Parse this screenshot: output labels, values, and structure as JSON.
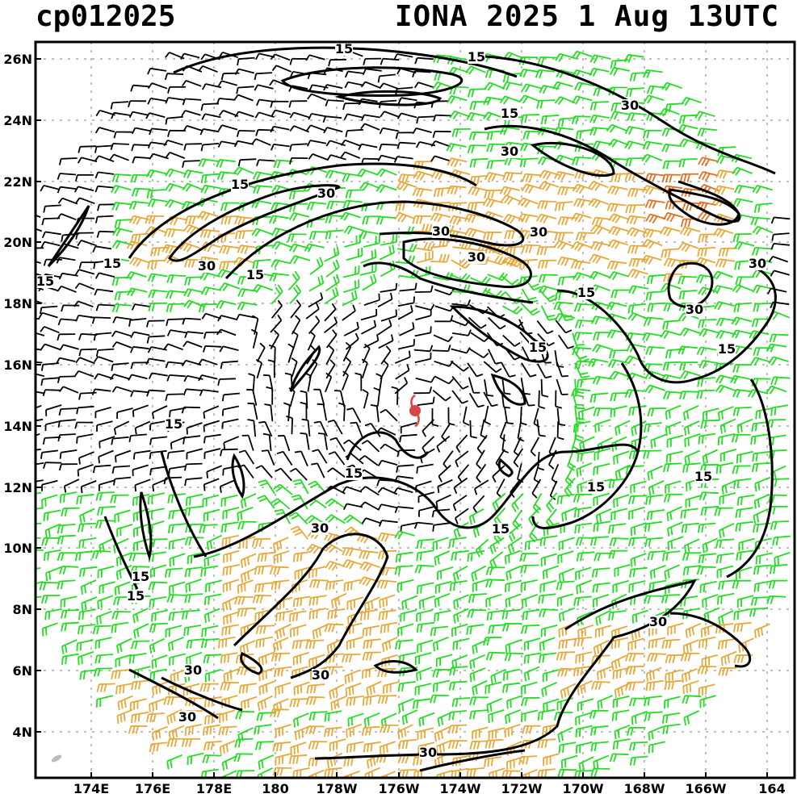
{
  "header": {
    "storm_id": "cp012025",
    "storm_title": "IONA 2025   1 Aug 13UTC"
  },
  "axes": {
    "lat_labels": [
      "26N",
      "24N",
      "22N",
      "20N",
      "18N",
      "16N",
      "14N",
      "12N",
      "10N",
      "8N",
      "6N",
      "4N"
    ],
    "lon_labels": [
      "174E",
      "176E",
      "178E",
      "180",
      "178W",
      "176W",
      "174W",
      "172W",
      "170W",
      "168W",
      "166W",
      "164"
    ]
  },
  "contour_levels": [
    "15",
    "30"
  ],
  "contour_labels": [
    "15",
    "15",
    "15",
    "15",
    "15",
    "15",
    "15",
    "15",
    "15",
    "15",
    "15",
    "15",
    "15",
    "15",
    "15",
    "15",
    "15",
    "30",
    "30",
    "30",
    "30",
    "30",
    "30",
    "30",
    "30",
    "30",
    "30",
    "30",
    "30",
    "30",
    "30",
    "30"
  ],
  "wind_colors": {
    "calm": "#000000",
    "moderate": "#22dd22",
    "strong": "#e8a838",
    "very_strong": "#e07020"
  },
  "storm_symbol": {
    "name": "tropical-cyclone-icon",
    "color": "#dd4444"
  },
  "grid": true
}
